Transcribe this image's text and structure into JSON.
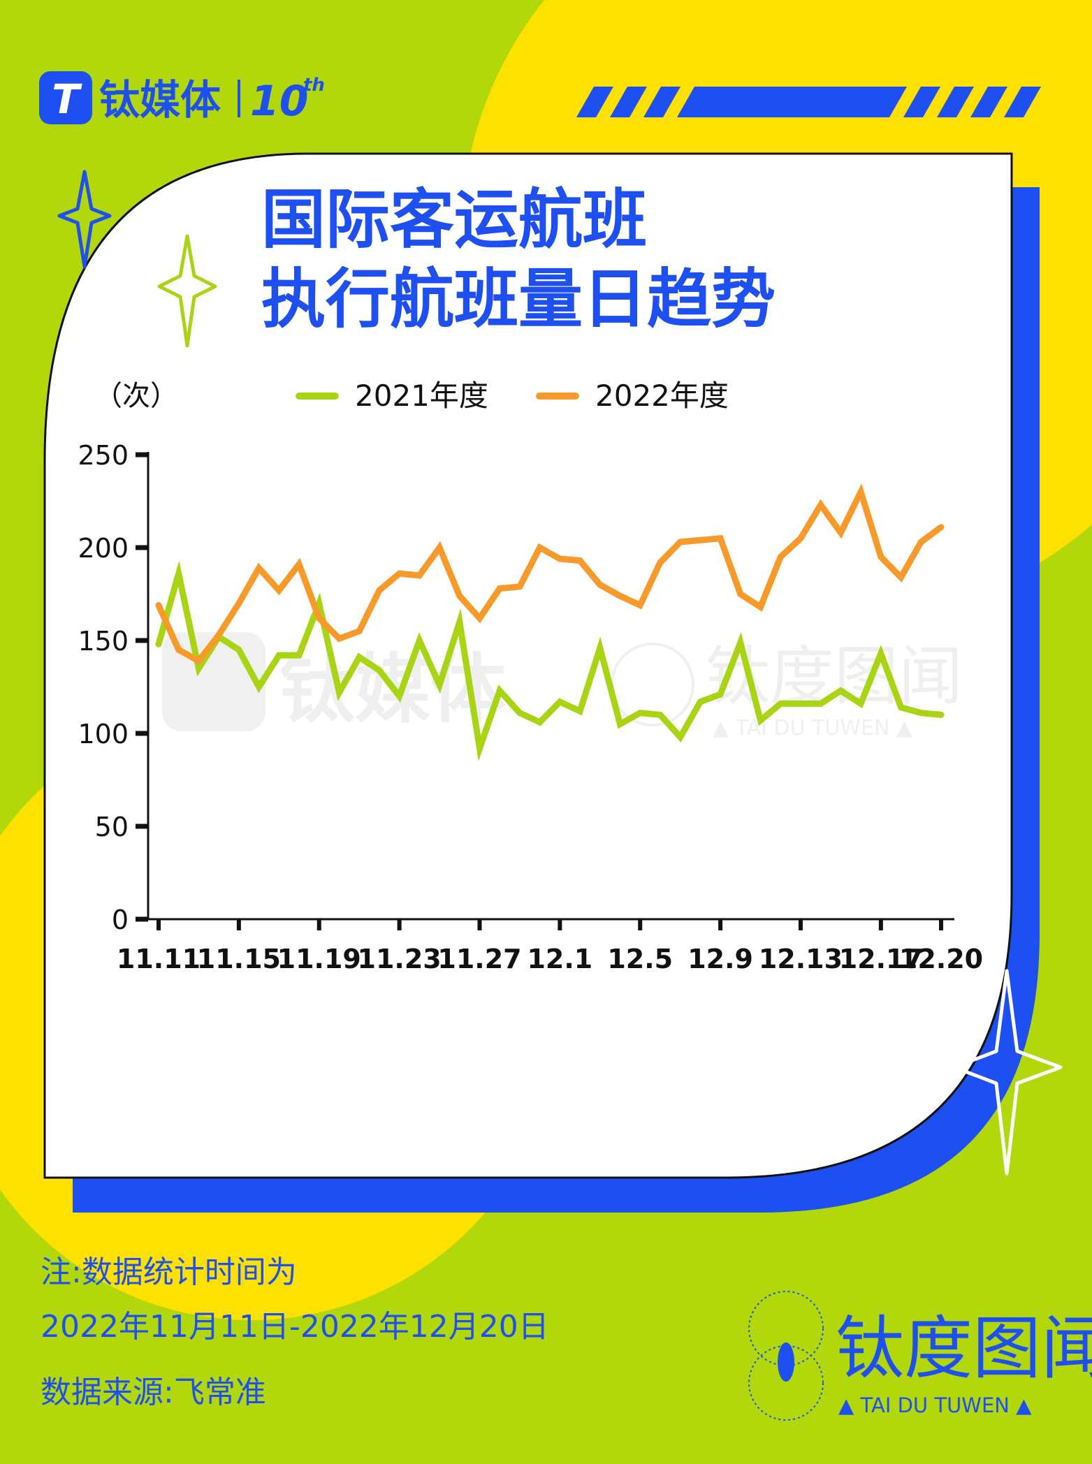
{
  "brand": {
    "logo_letter": "T",
    "name": "钛媒体",
    "anniversary": "10",
    "anniversary_suffix": "th"
  },
  "title": {
    "line1": "国际客运航班",
    "line2": "执行航班量日趋势"
  },
  "notes": {
    "line1": "注:数据统计时间为",
    "line2": "2022年11月11日-2022年12月20日",
    "line3": "数据来源:飞常准"
  },
  "footer_brand": {
    "name": "钛度图闻",
    "sub": "▲ TAI DU TUWEN ▲"
  },
  "watermark": {
    "brand": "钛媒体",
    "name": "钛度图闻",
    "sub": "▲ TAI DU TUWEN ▲"
  },
  "colors": {
    "background": "#b2d80c",
    "yellow": "#ffe100",
    "blue": "#1e4ff0",
    "series_2021": "#a8d414",
    "series_2022": "#f89a2a"
  },
  "chart_data": {
    "type": "line",
    "title": "国际客运航班执行航班量日趋势",
    "ylabel": "（次）",
    "xlabel": "",
    "ylim": [
      0,
      250
    ],
    "yticks": [
      0,
      50,
      100,
      150,
      200,
      250
    ],
    "x_tick_labels": [
      "11.11",
      "11.15",
      "11.19",
      "11.23",
      "11.27",
      "12.1",
      "12.5",
      "12.9",
      "12.13",
      "12.17",
      "12.20"
    ],
    "x_tick_index": [
      0,
      4,
      8,
      12,
      16,
      20,
      24,
      28,
      32,
      36,
      39
    ],
    "x": [
      "11.11",
      "11.12",
      "11.13",
      "11.14",
      "11.15",
      "11.16",
      "11.17",
      "11.18",
      "11.19",
      "11.20",
      "11.21",
      "11.22",
      "11.23",
      "11.24",
      "11.25",
      "11.26",
      "11.27",
      "11.28",
      "11.29",
      "11.30",
      "12.1",
      "12.2",
      "12.3",
      "12.4",
      "12.5",
      "12.6",
      "12.7",
      "12.8",
      "12.9",
      "12.10",
      "12.11",
      "12.12",
      "12.13",
      "12.14",
      "12.15",
      "12.16",
      "12.17",
      "12.18",
      "12.19",
      "12.20"
    ],
    "legend_position": "top",
    "series": [
      {
        "name": "2021年度",
        "color": "#a8d414",
        "values": [
          148,
          186,
          135,
          152,
          145,
          125,
          142,
          142,
          170,
          122,
          141,
          134,
          120,
          150,
          126,
          160,
          92,
          123,
          111,
          106,
          117,
          112,
          146,
          105,
          111,
          110,
          98,
          117,
          121,
          149,
          107,
          116,
          116,
          116,
          123,
          116,
          143,
          114,
          111,
          110
        ]
      },
      {
        "name": "2022年度",
        "color": "#f89a2a",
        "values": [
          169,
          145,
          139,
          153,
          170,
          189,
          177,
          191,
          162,
          151,
          155,
          177,
          186,
          185,
          200,
          174,
          162,
          178,
          179,
          200,
          194,
          193,
          180,
          174,
          169,
          192,
          203,
          204,
          205,
          175,
          168,
          195,
          205,
          223,
          208,
          230,
          195,
          184,
          203,
          211
        ]
      }
    ]
  }
}
